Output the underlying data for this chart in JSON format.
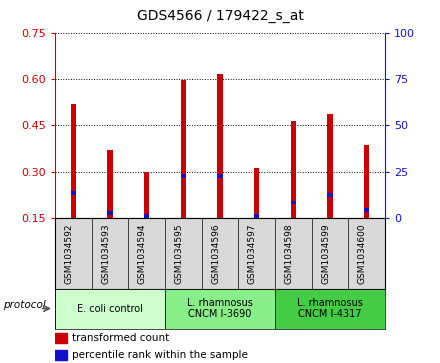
{
  "title": "GDS4566 / 179422_s_at",
  "samples": [
    "GSM1034592",
    "GSM1034593",
    "GSM1034594",
    "GSM1034595",
    "GSM1034596",
    "GSM1034597",
    "GSM1034598",
    "GSM1034599",
    "GSM1034600"
  ],
  "red_values": [
    0.52,
    0.37,
    0.3,
    0.595,
    0.615,
    0.31,
    0.465,
    0.485,
    0.385
  ],
  "blue_values": [
    0.23,
    0.165,
    0.155,
    0.285,
    0.285,
    0.155,
    0.2,
    0.225,
    0.175
  ],
  "red_color": "#cc0000",
  "blue_color": "#1111cc",
  "ylim_left": [
    0.15,
    0.75
  ],
  "ylim_right": [
    0.0,
    100.0
  ],
  "yticks_left": [
    0.15,
    0.3,
    0.45,
    0.6,
    0.75
  ],
  "yticks_right": [
    0,
    25,
    50,
    75,
    100
  ],
  "groups": [
    {
      "label": "E. coli control",
      "start": 0,
      "end": 3,
      "color": "#ccffcc"
    },
    {
      "label": "L. rhamnosus\nCNCM I-3690",
      "start": 3,
      "end": 6,
      "color": "#88ee88"
    },
    {
      "label": "L. rhamnosus\nCNCM I-4317",
      "start": 6,
      "end": 9,
      "color": "#44cc44"
    }
  ],
  "legend_red": "transformed count",
  "legend_blue": "percentile rank within the sample",
  "bar_width": 0.15,
  "blue_bar_width": 0.15,
  "baseline": 0.15,
  "protocol_label": "protocol"
}
